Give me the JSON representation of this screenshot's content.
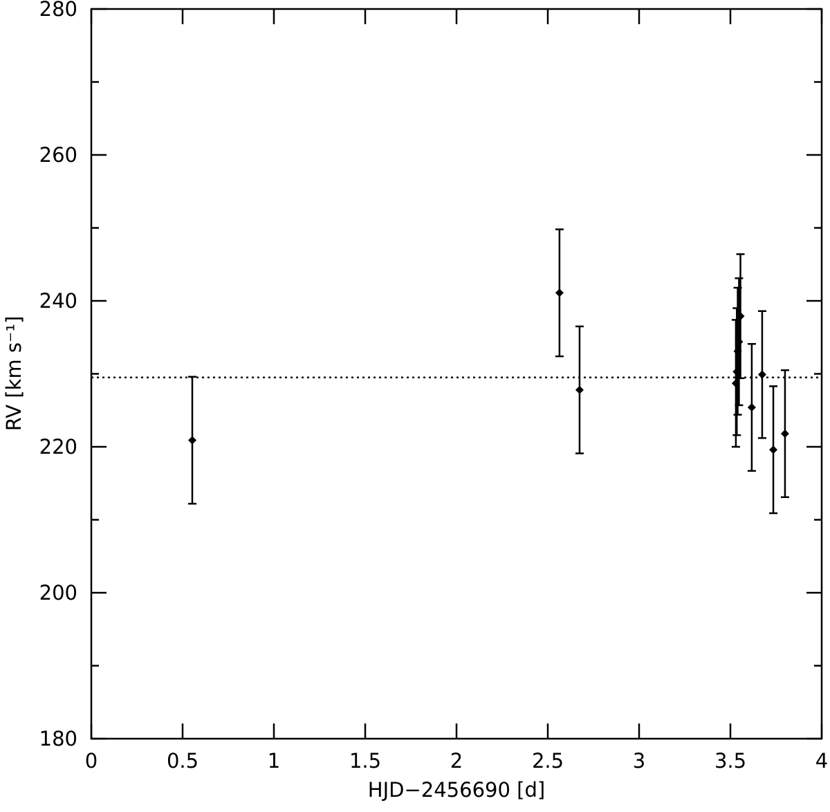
{
  "chart_data": {
    "type": "scatter",
    "xlabel": "HJD−2456690 [d]",
    "ylabel": "RV [km s⁻¹]",
    "x": [
      0.553,
      2.564,
      2.674,
      3.53,
      3.535,
      3.54,
      3.547,
      3.555,
      3.617,
      3.674,
      3.735,
      3.799
    ],
    "y": [
      220.9,
      241.1,
      227.8,
      228.7,
      230.3,
      233.1,
      234.4,
      237.9,
      225.4,
      229.9,
      219.6,
      221.8
    ],
    "yerr": [
      8.7,
      8.7,
      8.7,
      8.7,
      8.7,
      8.7,
      8.7,
      8.5,
      8.7,
      8.7,
      8.7,
      8.7
    ],
    "color": "#000000",
    "hline": 229.5,
    "xlim": [
      0,
      4
    ],
    "ylim": [
      180,
      280
    ],
    "xticks": [
      0,
      0.5,
      1,
      1.5,
      2,
      2.5,
      3,
      3.5,
      4
    ],
    "yticks": [
      180,
      200,
      220,
      240,
      260,
      280
    ],
    "yminorticks": [
      190,
      210,
      230,
      250,
      270
    ]
  }
}
